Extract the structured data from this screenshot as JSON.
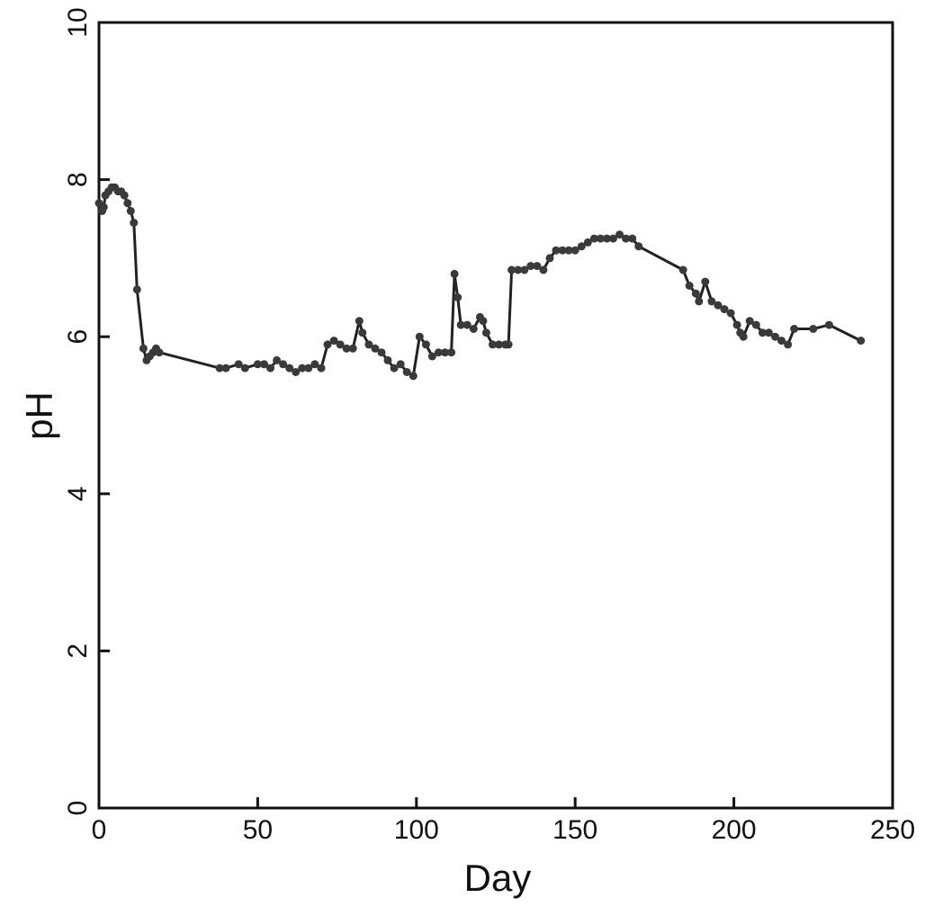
{
  "chart_data": {
    "type": "line",
    "title": "",
    "xlabel": "Day",
    "ylabel": "pH",
    "xlim": [
      0,
      250
    ],
    "ylim": [
      0,
      10
    ],
    "x_ticks": [
      "0",
      "50",
      "100",
      "150",
      "200",
      "250"
    ],
    "y_ticks": [
      "0",
      "2",
      "4",
      "6",
      "8",
      "10"
    ],
    "grid": false,
    "legend": "none",
    "colors": {
      "line": "#222222",
      "marker": "#3a3a3a",
      "axis": "#111111"
    },
    "series": [
      {
        "x": [
          0,
          1,
          1.5,
          2,
          3,
          4,
          5,
          6,
          7,
          8,
          9,
          10,
          11,
          12,
          14,
          15,
          16,
          17,
          18,
          19,
          38,
          40,
          44,
          46,
          50,
          52,
          54,
          56,
          58,
          60,
          62,
          64,
          66,
          68,
          70,
          72,
          74,
          76,
          78,
          80,
          82,
          83,
          85,
          87,
          89,
          91,
          93,
          95,
          97,
          99,
          101,
          103,
          105,
          107,
          109,
          111,
          112,
          113,
          114,
          116,
          118,
          120,
          121,
          122,
          124,
          126,
          128,
          129,
          130,
          132,
          134,
          136,
          138,
          140,
          142,
          144,
          146,
          148,
          150,
          152,
          154,
          156,
          158,
          160,
          162,
          164,
          166,
          168,
          170,
          184,
          186,
          188,
          189,
          191,
          193,
          195,
          197,
          199,
          201,
          202,
          203,
          205,
          207,
          209,
          211,
          213,
          215,
          217,
          219,
          225,
          230,
          240
        ],
        "y": [
          7.7,
          7.6,
          7.65,
          7.8,
          7.85,
          7.9,
          7.9,
          7.85,
          7.85,
          7.8,
          7.7,
          7.6,
          7.45,
          6.6,
          5.85,
          5.7,
          5.75,
          5.8,
          5.85,
          5.8,
          5.6,
          5.6,
          5.65,
          5.6,
          5.65,
          5.65,
          5.6,
          5.7,
          5.65,
          5.6,
          5.55,
          5.6,
          5.6,
          5.65,
          5.6,
          5.9,
          5.95,
          5.9,
          5.85,
          5.85,
          6.2,
          6.05,
          5.9,
          5.85,
          5.8,
          5.7,
          5.6,
          5.65,
          5.55,
          5.5,
          6.0,
          5.9,
          5.75,
          5.8,
          5.8,
          5.8,
          6.8,
          6.5,
          6.15,
          6.15,
          6.1,
          6.25,
          6.2,
          6.05,
          5.9,
          5.9,
          5.9,
          5.9,
          6.85,
          6.85,
          6.85,
          6.9,
          6.9,
          6.85,
          7.0,
          7.1,
          7.1,
          7.1,
          7.1,
          7.15,
          7.2,
          7.25,
          7.25,
          7.25,
          7.25,
          7.3,
          7.25,
          7.25,
          7.15,
          6.85,
          6.65,
          6.55,
          6.45,
          6.7,
          6.45,
          6.4,
          6.35,
          6.3,
          6.15,
          6.05,
          6.0,
          6.2,
          6.15,
          6.05,
          6.05,
          6.0,
          5.95,
          5.9,
          6.1,
          6.1,
          6.15,
          5.95
        ]
      }
    ]
  }
}
